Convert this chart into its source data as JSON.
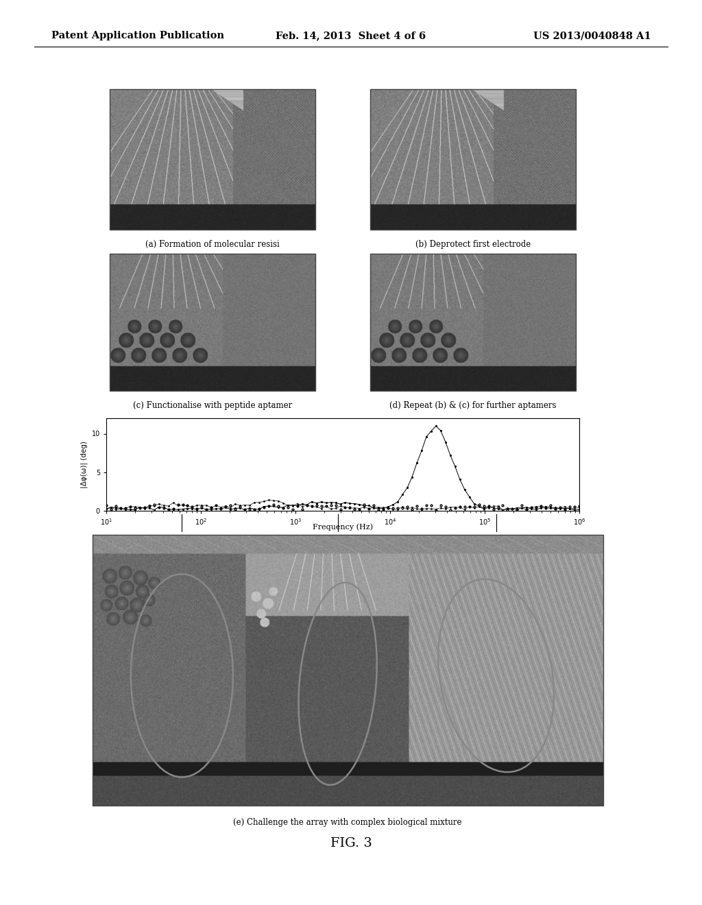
{
  "background_color": "#ffffff",
  "page_header": {
    "left": "Patent Application Publication",
    "center": "Feb. 14, 2013  Sheet 4 of 6",
    "right": "US 2013/0040848 A1",
    "font_size": 10.5
  },
  "figure_label": "FIG. 3",
  "caption_e": "(e) Challenge the array with complex biological mixture",
  "captions": {
    "a": "(a) Formation of molecular resisi",
    "b": "(b) Deprotect first electrode",
    "c": "(c) Functionalise with peptide aptamer",
    "d": "(d) Repeat (b) & (c) for further aptamers"
  },
  "graph": {
    "ylabel": "|Δφ(ω)| (deg)",
    "xlabel": "Frequency (Hz)",
    "yticks": [
      0,
      5,
      10
    ],
    "ymax": 12,
    "xmin": 10,
    "xmax": 1000000
  }
}
